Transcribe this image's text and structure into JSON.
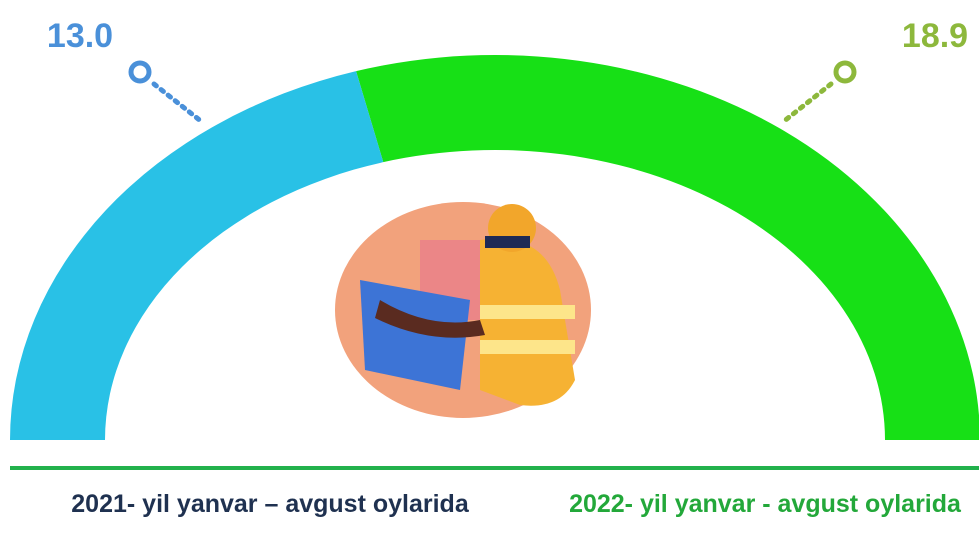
{
  "chart_data": {
    "type": "semi-donut",
    "categories": [
      "2021- yil yanvar – avgust oylarida",
      "2022- yil yanvar - avgust oylarida"
    ],
    "values": [
      13.0,
      18.9
    ],
    "value_labels": [
      "13.0",
      "18.9"
    ],
    "colors": [
      "#29c1e6",
      "#17e016"
    ],
    "label_colors": [
      "#4a90d9",
      "#8db83c"
    ],
    "category_colors": [
      "#1f3150",
      "#23a83a"
    ]
  }
}
